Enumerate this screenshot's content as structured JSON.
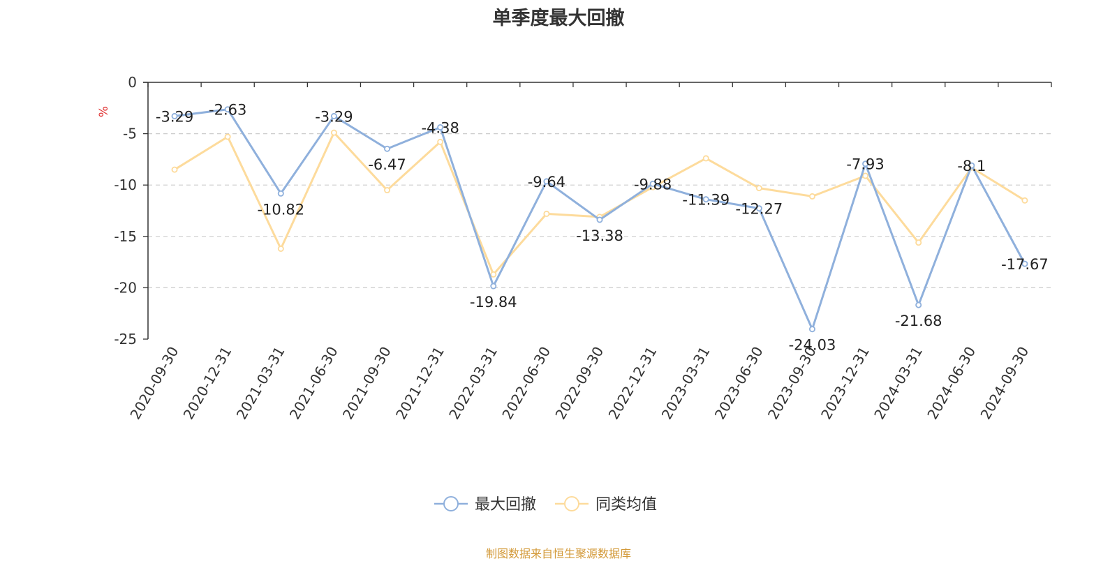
{
  "chart_data": {
    "type": "line",
    "title": "单季度最大回撤",
    "ylabel": "%",
    "xlabel": "",
    "ylim": [
      -25,
      0
    ],
    "yticks": [
      0,
      -5,
      -10,
      -15,
      -20,
      -25
    ],
    "grid": true,
    "legend_position": "bottom-center",
    "categories": [
      "2020-09-30",
      "2020-12-31",
      "2021-03-31",
      "2021-06-30",
      "2021-09-30",
      "2021-12-31",
      "2022-03-31",
      "2022-06-30",
      "2022-09-30",
      "2022-12-31",
      "2023-03-31",
      "2023-06-30",
      "2023-09-30",
      "2023-12-31",
      "2024-03-31",
      "2024-06-30",
      "2024-09-30"
    ],
    "series": [
      {
        "name": "最大回撤",
        "color": "#8fb0dc",
        "show_labels": true,
        "values": [
          -3.29,
          -2.63,
          -10.82,
          -3.29,
          -6.47,
          -4.38,
          -19.84,
          -9.64,
          -13.38,
          -9.88,
          -11.39,
          -12.27,
          -24.03,
          -7.93,
          -21.68,
          -8.1,
          -17.67
        ],
        "labels": [
          "-3.29",
          "-2.63",
          "-10.82",
          "-3.29",
          "-6.47",
          "-4.38",
          "-19.84",
          "-9.64",
          "-13.38",
          "-9.88",
          "-11.39",
          "-12.27",
          "-24.03",
          "-7.93",
          "-21.68",
          "-8.1",
          "-17.67"
        ]
      },
      {
        "name": "同类均值",
        "color": "#fddb9c",
        "show_labels": false,
        "values": [
          -8.5,
          -5.3,
          -16.2,
          -4.9,
          -10.5,
          -5.8,
          -18.7,
          -12.8,
          -13.1,
          -10.2,
          -7.4,
          -10.3,
          -11.1,
          -9.1,
          -15.6,
          -8.3,
          -11.5
        ]
      }
    ]
  },
  "source_note": "制图数据来自恒生聚源数据库"
}
